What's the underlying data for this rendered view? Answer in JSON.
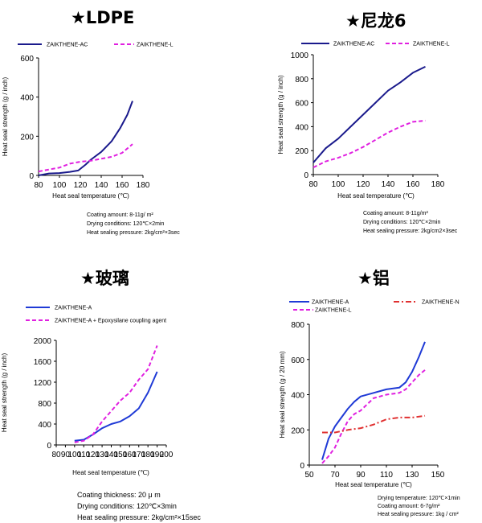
{
  "colors": {
    "blue": "#1a1a8c",
    "blue_bright": "#1f3ad6",
    "magenta": "#e020e0",
    "red": "#e03030"
  },
  "chart_data": [
    {
      "type": "line",
      "title": "★LDPE",
      "xlabel": "Heat seal temperature (℃)",
      "ylabel": "Heat seal strength (g / inch)",
      "xlim": [
        80,
        180
      ],
      "ylim": [
        0,
        600
      ],
      "xticks": [
        "80",
        "100",
        "120",
        "140",
        "160",
        "180"
      ],
      "yticks": [
        "0",
        "200",
        "400",
        "600"
      ],
      "series": [
        {
          "name": "ZAIKTHENE-AC",
          "style": "solid",
          "color": "#1a1a8c",
          "x": [
            80,
            90,
            100,
            110,
            118,
            125,
            130,
            140,
            150,
            158,
            165,
            170
          ],
          "y": [
            0,
            10,
            12,
            18,
            25,
            55,
            80,
            120,
            175,
            240,
            310,
            380
          ]
        },
        {
          "name": "ZAIKTHENE-L",
          "style": "dashed",
          "color": "#e020e0",
          "x": [
            80,
            90,
            100,
            110,
            120,
            130,
            140,
            150,
            160,
            170
          ],
          "y": [
            20,
            30,
            40,
            60,
            70,
            75,
            85,
            95,
            115,
            160
          ]
        }
      ],
      "notes": [
        "Coating amount: 8-11g/ m²",
        "Drying conditions: 120℃×2min",
        "Heat sealing pressure: 2kg/cm²×3sec"
      ]
    },
    {
      "type": "line",
      "title": "★尼龙6",
      "xlabel": "Heat seal temperature (℃)",
      "ylabel": "Heat seal strength (g / inch)",
      "xlim": [
        80,
        180
      ],
      "ylim": [
        0,
        1000
      ],
      "xticks": [
        "80",
        "100",
        "120",
        "140",
        "160",
        "180"
      ],
      "yticks": [
        "0",
        "200",
        "400",
        "600",
        "800",
        "1000"
      ],
      "series": [
        {
          "name": "ZAIKTHENE-AC",
          "style": "solid",
          "color": "#1a1a8c",
          "x": [
            80,
            90,
            100,
            110,
            120,
            130,
            140,
            150,
            160,
            170
          ],
          "y": [
            100,
            220,
            300,
            400,
            500,
            600,
            700,
            770,
            850,
            900
          ]
        },
        {
          "name": "ZAIKTHENE-L",
          "style": "dashed",
          "color": "#e020e0",
          "x": [
            80,
            90,
            100,
            110,
            120,
            130,
            140,
            150,
            160,
            170
          ],
          "y": [
            60,
            110,
            140,
            180,
            230,
            290,
            350,
            400,
            440,
            450
          ]
        }
      ],
      "notes": [
        "Coating amount: 8-11g/m²",
        "Drying conditions: 120℃×2min",
        "Heat sealing pressure: 2kg/cm2×3sec"
      ]
    },
    {
      "type": "line",
      "title": "★玻璃",
      "xlabel": "Heat seal temperature (℃)",
      "ylabel": "Heat seal strength (g / inch)",
      "xlim": [
        80,
        200
      ],
      "ylim": [
        0,
        2000
      ],
      "xticks": [
        "80",
        "90",
        "100",
        "110",
        "120",
        "130",
        "140",
        "150",
        "160",
        "170",
        "180",
        "190",
        "200"
      ],
      "yticks": [
        "0",
        "400",
        "800",
        "1200",
        "1600",
        "2000"
      ],
      "series": [
        {
          "name": "ZAIKTHENE-A",
          "style": "solid",
          "color": "#1f3ad6",
          "x": [
            100,
            110,
            120,
            130,
            140,
            150,
            160,
            170,
            180,
            190
          ],
          "y": [
            80,
            100,
            200,
            320,
            400,
            450,
            550,
            700,
            1000,
            1400
          ]
        },
        {
          "name": "ZAIKTHENE-A + Epoxysilane coupling agent",
          "style": "dashed",
          "color": "#e020e0",
          "x": [
            100,
            110,
            120,
            130,
            140,
            150,
            160,
            170,
            180,
            190
          ],
          "y": [
            50,
            80,
            200,
            450,
            650,
            850,
            1000,
            1250,
            1450,
            1900
          ]
        }
      ],
      "notes": [
        "Coating thickness: 20 μ m",
        "Drying conditions: 120℃×3min",
        "Heat sealing pressure: 2kg/cm²×15sec"
      ]
    },
    {
      "type": "line",
      "title": "★铝",
      "xlabel": "Heat seal temperature (℃)",
      "ylabel": "Heat seal strength (g / 20 mm)",
      "xlim": [
        50,
        150
      ],
      "ylim": [
        0,
        800
      ],
      "xticks": [
        "50",
        "70",
        "90",
        "110",
        "130",
        "150"
      ],
      "yticks": [
        "0",
        "200",
        "400",
        "600",
        "800"
      ],
      "series": [
        {
          "name": "ZAIKTHENE-A",
          "style": "solid",
          "color": "#1f3ad6",
          "x": [
            60,
            65,
            70,
            75,
            80,
            85,
            90,
            100,
            110,
            120,
            125,
            130,
            135,
            140
          ],
          "y": [
            30,
            150,
            220,
            270,
            320,
            360,
            390,
            410,
            430,
            440,
            470,
            530,
            610,
            700
          ]
        },
        {
          "name": "ZAIKTHENE-L",
          "style": "dashed",
          "color": "#e020e0",
          "x": [
            60,
            65,
            70,
            75,
            80,
            85,
            90,
            100,
            110,
            120,
            125,
            130,
            135,
            140
          ],
          "y": [
            10,
            50,
            100,
            180,
            250,
            290,
            310,
            380,
            400,
            410,
            430,
            470,
            510,
            540
          ]
        },
        {
          "name": "ZAIKTHENE-N",
          "style": "dashdot",
          "color": "#e03030",
          "x": [
            60,
            70,
            80,
            90,
            100,
            110,
            120,
            130,
            140
          ],
          "y": [
            185,
            185,
            200,
            210,
            230,
            260,
            270,
            270,
            280
          ]
        }
      ],
      "notes": [
        "Drying temperature: 120℃×1min",
        "Coating amount: 6-7g/m²",
        "Heat sealing pressure: 1kg / cm²"
      ]
    }
  ]
}
